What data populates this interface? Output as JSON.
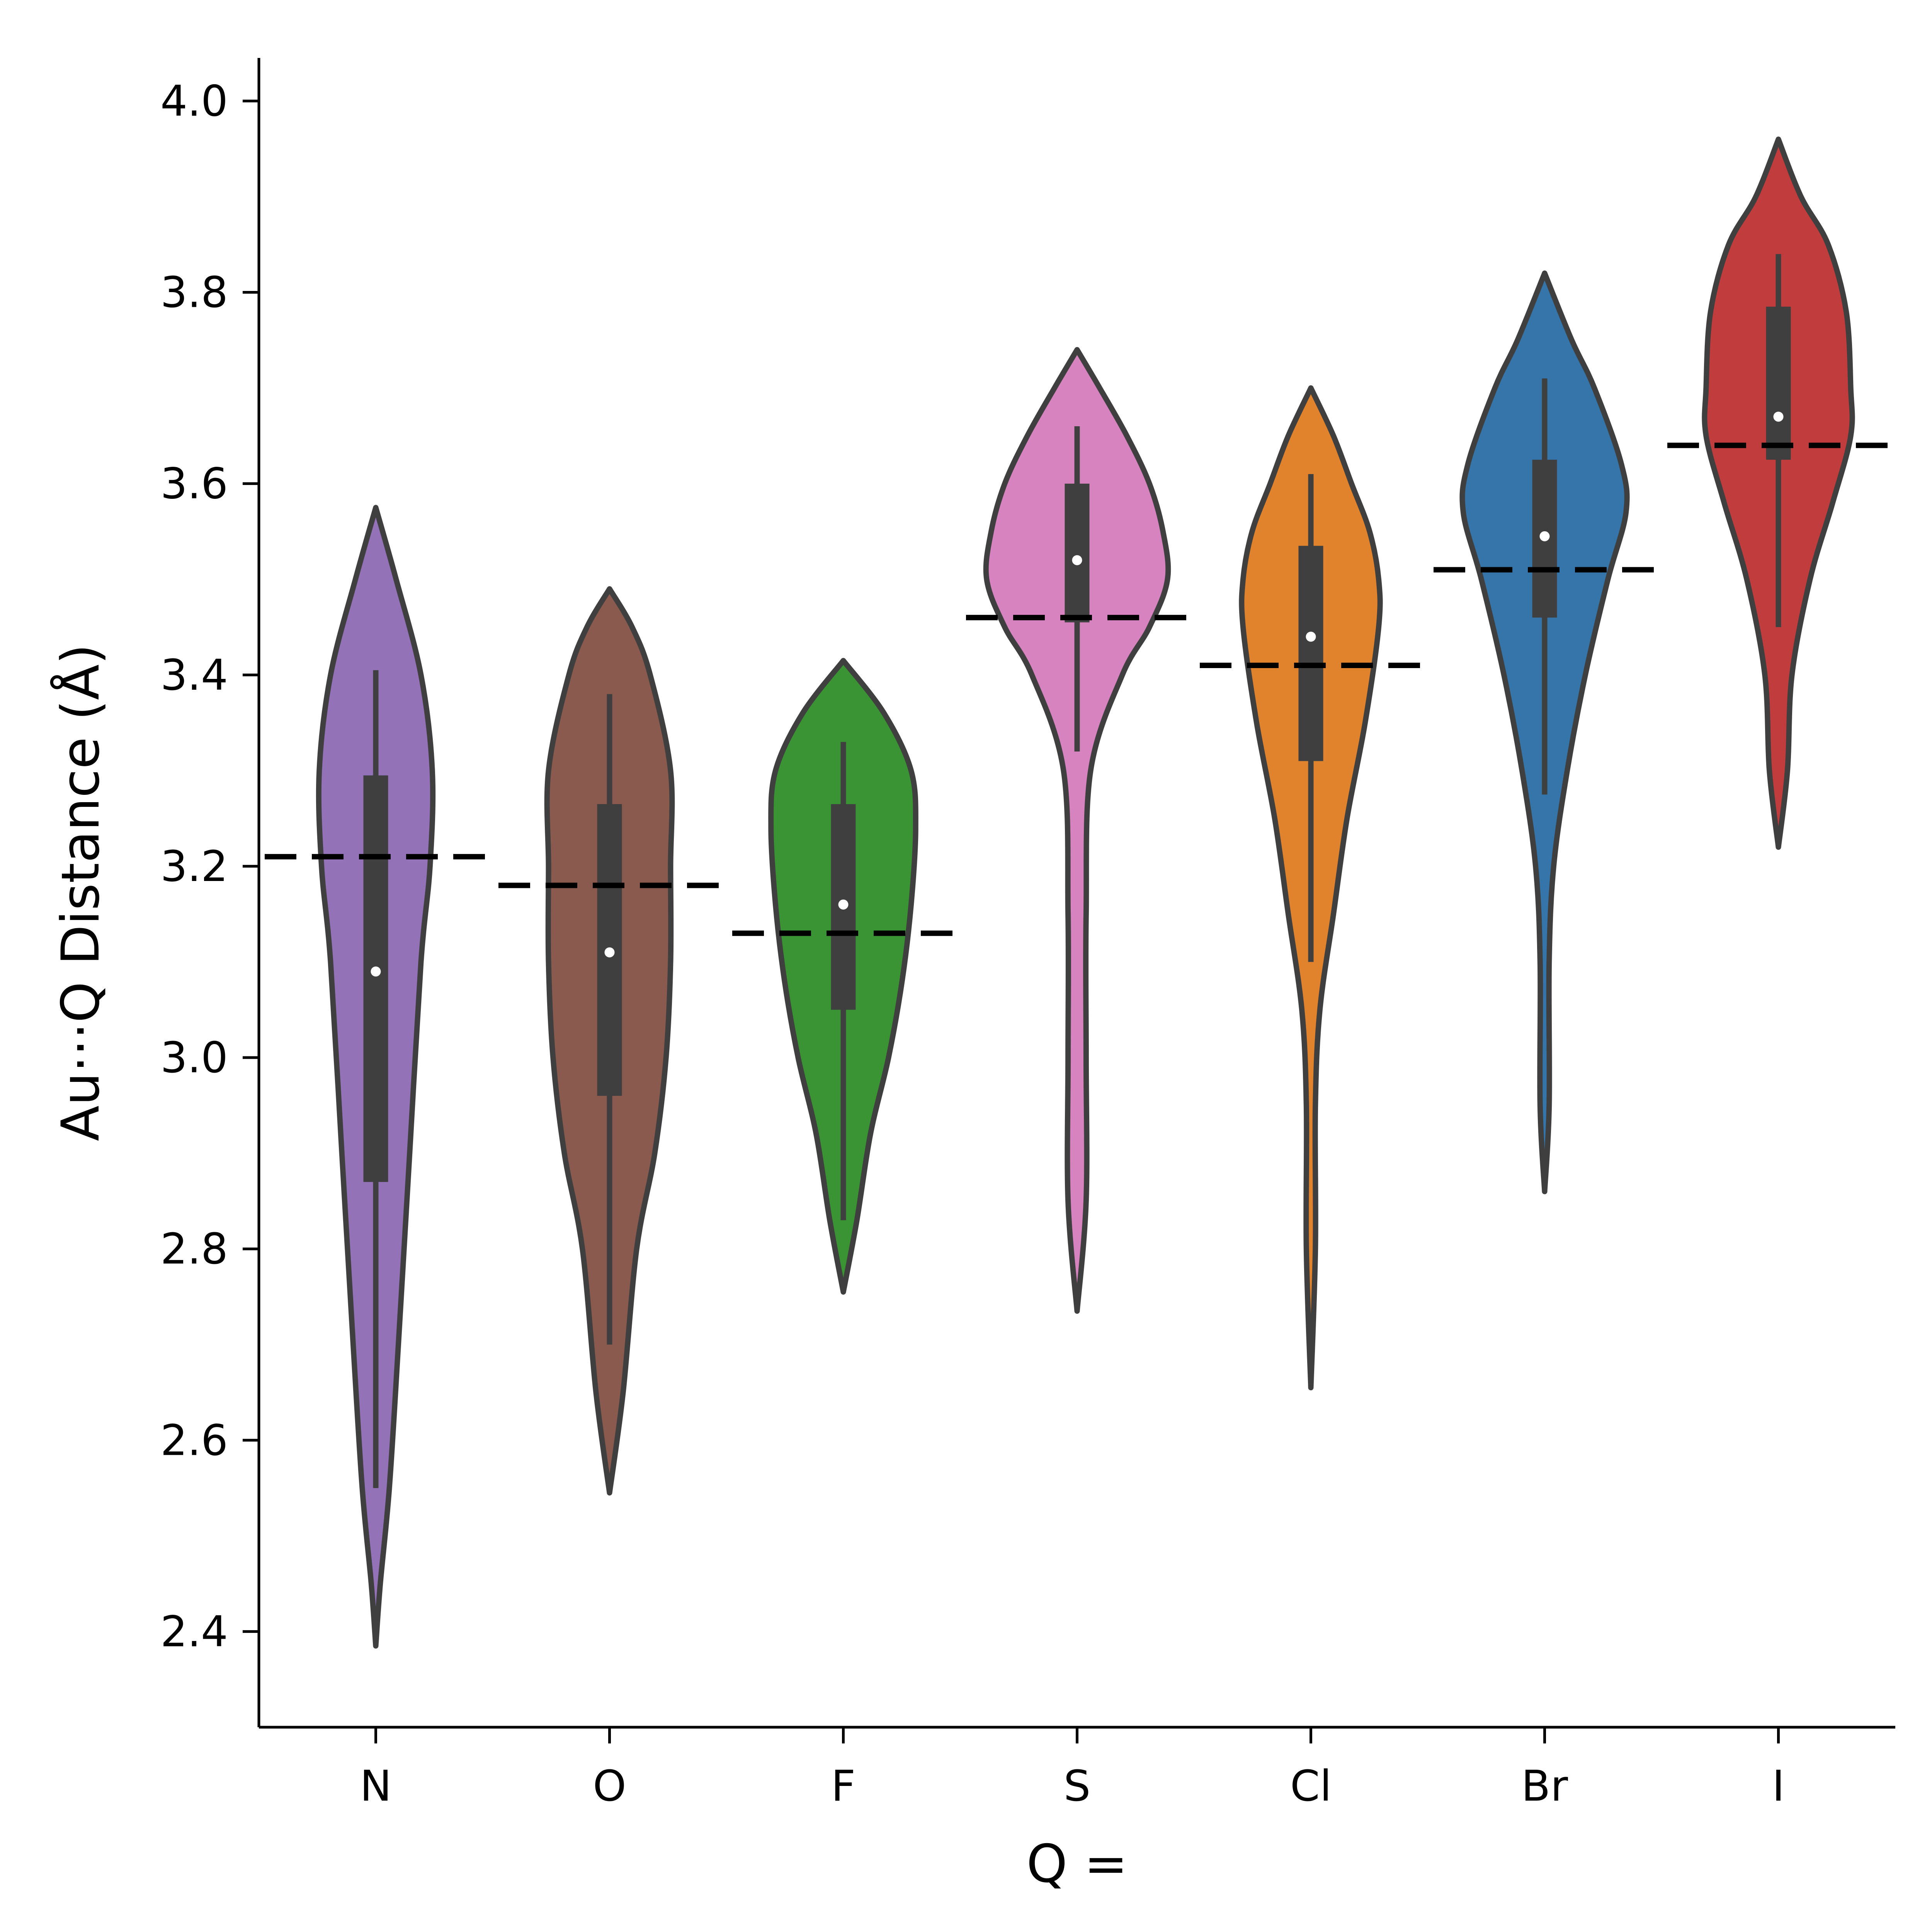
{
  "chart_data": {
    "type": "violin",
    "xlabel": "Q =",
    "ylabel": "Au···Q Distance (Å)",
    "ylim": [
      2.3,
      4.045
    ],
    "yticks": [
      "2.4",
      "2.6",
      "2.8",
      "3.0",
      "3.2",
      "3.4",
      "3.6",
      "3.8",
      "4.0"
    ],
    "categories": [
      "N",
      "O",
      "F",
      "S",
      "Cl",
      "Br",
      "I"
    ],
    "colors": [
      "#9372b8",
      "#8b5a4f",
      "#3a9434",
      "#d683bf",
      "#e1822c",
      "#3675a9",
      "#c03c3d"
    ],
    "outline_color": "#3f3f3f",
    "series": [
      {
        "category": "N",
        "median": 3.09,
        "q1": 2.87,
        "q3": 3.295,
        "whisker_low": 2.55,
        "whisker_high": 3.405,
        "reference": 3.21,
        "density": [
          [
            2.385,
            0.0
          ],
          [
            2.45,
            0.01
          ],
          [
            2.55,
            0.03
          ],
          [
            2.7,
            0.05
          ],
          [
            2.9,
            0.075
          ],
          [
            3.1,
            0.1
          ],
          [
            3.2,
            0.12
          ],
          [
            3.3,
            0.125
          ],
          [
            3.4,
            0.1
          ],
          [
            3.5,
            0.045
          ],
          [
            3.575,
            0.0
          ]
        ]
      },
      {
        "category": "O",
        "median": 3.11,
        "q1": 2.96,
        "q3": 3.265,
        "whisker_low": 2.7,
        "whisker_high": 3.38,
        "reference": 3.18,
        "density": [
          [
            2.545,
            0.0
          ],
          [
            2.65,
            0.03
          ],
          [
            2.8,
            0.06
          ],
          [
            2.9,
            0.1
          ],
          [
            3.0,
            0.125
          ],
          [
            3.1,
            0.135
          ],
          [
            3.2,
            0.135
          ],
          [
            3.3,
            0.135
          ],
          [
            3.4,
            0.09
          ],
          [
            3.45,
            0.05
          ],
          [
            3.49,
            0.0
          ]
        ]
      },
      {
        "category": "F",
        "median": 3.16,
        "q1": 3.05,
        "q3": 3.265,
        "whisker_low": 2.83,
        "whisker_high": 3.33,
        "reference": 3.13,
        "density": [
          [
            2.755,
            0.0
          ],
          [
            2.83,
            0.03
          ],
          [
            2.92,
            0.06
          ],
          [
            3.0,
            0.1
          ],
          [
            3.08,
            0.13
          ],
          [
            3.16,
            0.15
          ],
          [
            3.24,
            0.16
          ],
          [
            3.3,
            0.15
          ],
          [
            3.36,
            0.09
          ],
          [
            3.415,
            0.0
          ]
        ]
      },
      {
        "category": "S",
        "median": 3.52,
        "q1": 3.455,
        "q3": 3.6,
        "whisker_low": 3.32,
        "whisker_high": 3.66,
        "reference": 3.46,
        "density": [
          [
            2.735,
            0.0
          ],
          [
            2.85,
            0.02
          ],
          [
            3.0,
            0.02
          ],
          [
            3.15,
            0.02
          ],
          [
            3.3,
            0.03
          ],
          [
            3.4,
            0.1
          ],
          [
            3.45,
            0.16
          ],
          [
            3.5,
            0.2
          ],
          [
            3.55,
            0.19
          ],
          [
            3.6,
            0.16
          ],
          [
            3.65,
            0.11
          ],
          [
            3.7,
            0.05
          ],
          [
            3.74,
            0.0
          ]
        ]
      },
      {
        "category": "Cl",
        "median": 3.44,
        "q1": 3.31,
        "q3": 3.535,
        "whisker_low": 3.1,
        "whisker_high": 3.61,
        "reference": 3.41,
        "density": [
          [
            2.655,
            0.0
          ],
          [
            2.8,
            0.01
          ],
          [
            2.95,
            0.01
          ],
          [
            3.05,
            0.02
          ],
          [
            3.15,
            0.05
          ],
          [
            3.25,
            0.08
          ],
          [
            3.35,
            0.12
          ],
          [
            3.45,
            0.15
          ],
          [
            3.5,
            0.15
          ],
          [
            3.55,
            0.13
          ],
          [
            3.6,
            0.09
          ],
          [
            3.65,
            0.05
          ],
          [
            3.7,
            0.0
          ]
        ]
      },
      {
        "category": "Br",
        "median": 3.545,
        "q1": 3.46,
        "q3": 3.625,
        "whisker_low": 3.275,
        "whisker_high": 3.71,
        "reference": 3.51,
        "density": [
          [
            2.86,
            0.0
          ],
          [
            2.95,
            0.01
          ],
          [
            3.1,
            0.01
          ],
          [
            3.2,
            0.02
          ],
          [
            3.3,
            0.05
          ],
          [
            3.4,
            0.09
          ],
          [
            3.5,
            0.14
          ],
          [
            3.57,
            0.18
          ],
          [
            3.62,
            0.17
          ],
          [
            3.7,
            0.11
          ],
          [
            3.75,
            0.06
          ],
          [
            3.82,
            0.0
          ]
        ]
      },
      {
        "category": "I",
        "median": 3.67,
        "q1": 3.625,
        "q3": 3.785,
        "whisker_low": 3.45,
        "whisker_high": 3.84,
        "reference": 3.64,
        "density": [
          [
            3.22,
            0.0
          ],
          [
            3.3,
            0.02
          ],
          [
            3.4,
            0.03
          ],
          [
            3.5,
            0.07
          ],
          [
            3.58,
            0.12
          ],
          [
            3.65,
            0.16
          ],
          [
            3.7,
            0.16
          ],
          [
            3.78,
            0.15
          ],
          [
            3.85,
            0.11
          ],
          [
            3.9,
            0.05
          ],
          [
            3.96,
            0.0
          ]
        ]
      }
    ]
  }
}
